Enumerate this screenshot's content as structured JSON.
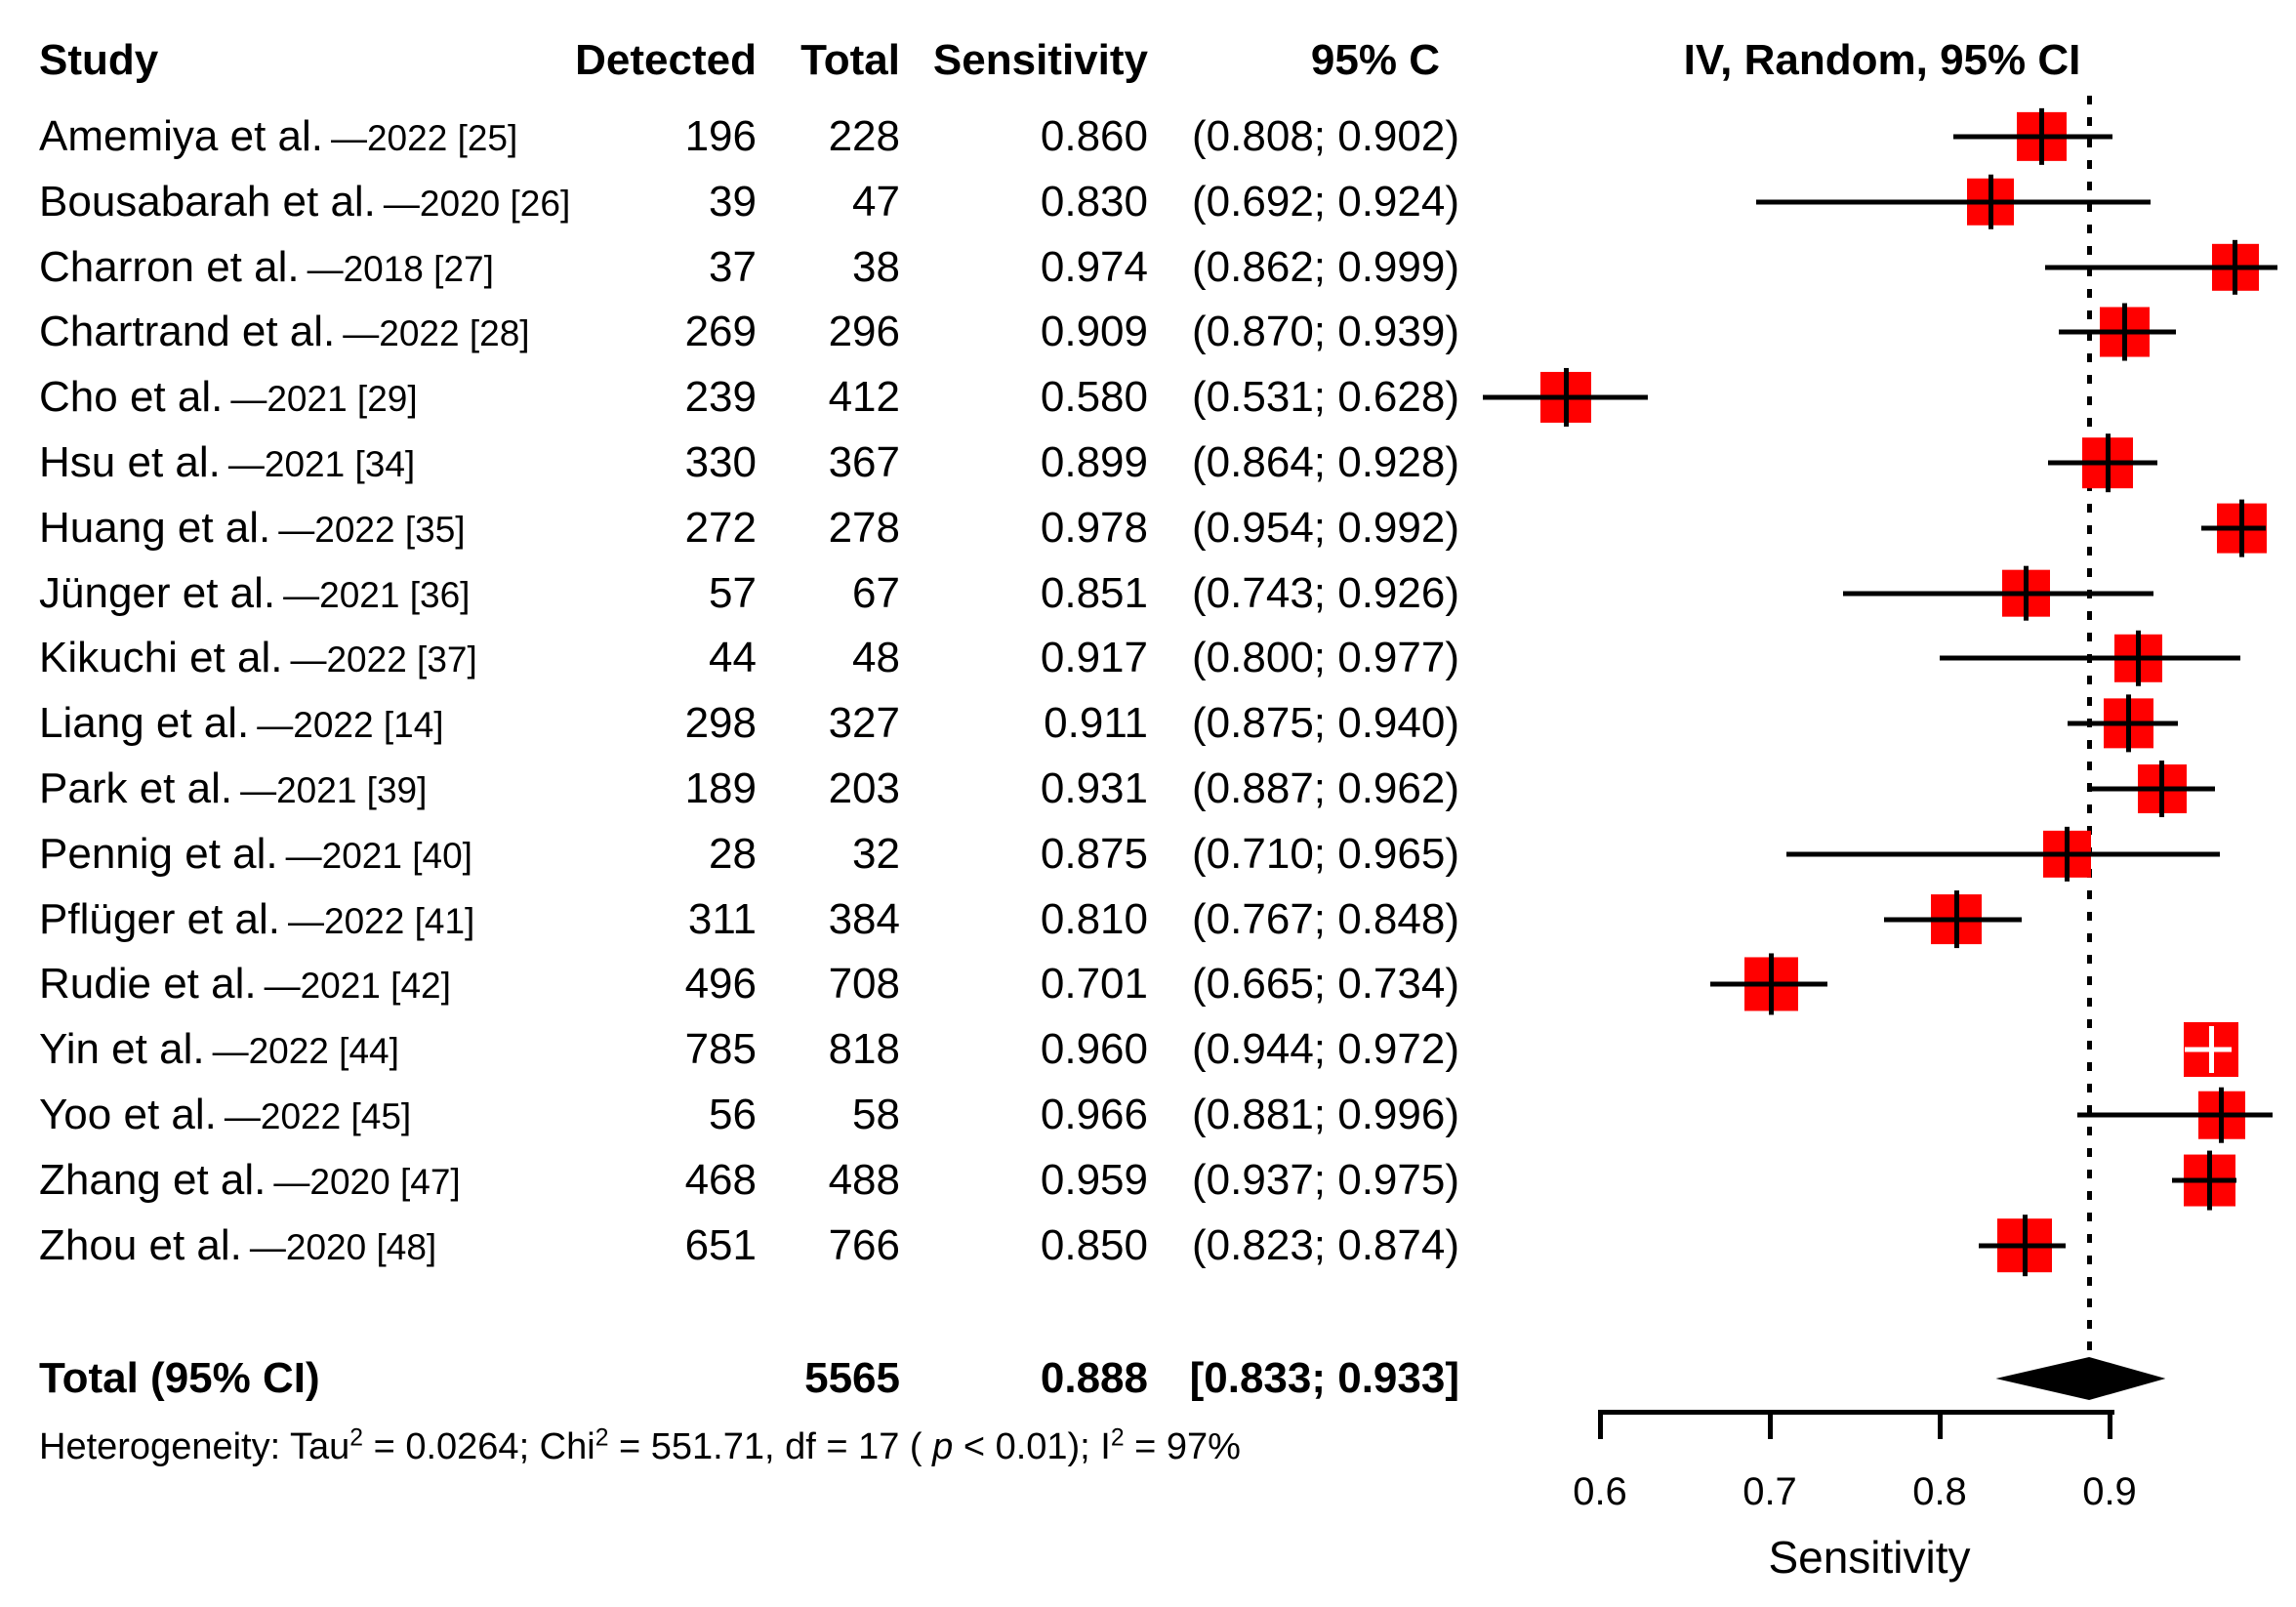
{
  "figure": {
    "columns": {
      "study": "Study",
      "detected": "Detected",
      "total": "Total",
      "sensitivity": "Sensitivity",
      "ci": "95% C",
      "plot": "IV, Random, 95% CI"
    },
    "total_row": {
      "label": "Total (95% CI)",
      "total": "5565",
      "sensitivity": "0.888",
      "ci": "[0.833; 0.933]"
    },
    "heterogeneity_segments": [
      {
        "t": "Heterogeneity: Tau"
      },
      {
        "t": "2",
        "sup": true
      },
      {
        "t": " = 0.0264; Chi"
      },
      {
        "t": "2",
        "sup": true
      },
      {
        "t": " = 551.71, df = 17 ( "
      },
      {
        "t": "p",
        "it": true
      },
      {
        "t": " < 0.01); I"
      },
      {
        "t": "2",
        "sup": true
      },
      {
        "t": " = 97%"
      }
    ],
    "axis": {
      "tick_labels": [
        "0.6",
        "0.7",
        "0.8",
        "0.9"
      ],
      "label": "Sensitivity"
    },
    "colors": {
      "marker": "#ff0000",
      "ink": "#000000",
      "diamond": "#000000"
    }
  },
  "chart_data": {
    "type": "scatter",
    "subtype": "forest-plot",
    "title": "",
    "xlabel": "Sensitivity",
    "x_ticks": [
      0.6,
      0.7,
      0.8,
      0.9
    ],
    "xlim": [
      0.5,
      1.005
    ],
    "grid": false,
    "reference_line": 0.888,
    "studies": [
      {
        "label": "Amemiya et al.",
        "year_ref": "—2022 [25]",
        "detected": "196",
        "total": "228",
        "sensitivity": 0.86,
        "ci_lower": 0.808,
        "ci_upper": 0.902,
        "sensitivity_text": "0.860",
        "ci_text": "(0.808; 0.902)"
      },
      {
        "label": "Bousabarah et al.",
        "year_ref": "—2020 [26]",
        "detected": "39",
        "total": "47",
        "sensitivity": 0.83,
        "ci_lower": 0.692,
        "ci_upper": 0.924,
        "sensitivity_text": "0.830",
        "ci_text": "(0.692; 0.924)"
      },
      {
        "label": "Charron et al.",
        "year_ref": "—2018 [27]",
        "detected": "37",
        "total": "38",
        "sensitivity": 0.974,
        "ci_lower": 0.862,
        "ci_upper": 0.999,
        "sensitivity_text": "0.974",
        "ci_text": "(0.862; 0.999)"
      },
      {
        "label": "Chartrand et al.",
        "year_ref": "—2022 [28]",
        "detected": "269",
        "total": "296",
        "sensitivity": 0.909,
        "ci_lower": 0.87,
        "ci_upper": 0.939,
        "sensitivity_text": "0.909",
        "ci_text": "(0.870; 0.939)"
      },
      {
        "label": "Cho et al.",
        "year_ref": "—2021 [29]",
        "detected": "239",
        "total": "412",
        "sensitivity": 0.58,
        "ci_lower": 0.531,
        "ci_upper": 0.628,
        "sensitivity_text": "0.580",
        "ci_text": "(0.531; 0.628)"
      },
      {
        "label": "Hsu et al.",
        "year_ref": "—2021 [34]",
        "detected": "330",
        "total": "367",
        "sensitivity": 0.899,
        "ci_lower": 0.864,
        "ci_upper": 0.928,
        "sensitivity_text": "0.899",
        "ci_text": "(0.864; 0.928)"
      },
      {
        "label": "Huang et al.",
        "year_ref": "—2022 [35]",
        "detected": "272",
        "total": "278",
        "sensitivity": 0.978,
        "ci_lower": 0.954,
        "ci_upper": 0.992,
        "sensitivity_text": "0.978",
        "ci_text": "(0.954; 0.992)"
      },
      {
        "label": "Jünger et al.",
        "year_ref": "—2021 [36]",
        "detected": "57",
        "total": "67",
        "sensitivity": 0.851,
        "ci_lower": 0.743,
        "ci_upper": 0.926,
        "sensitivity_text": "0.851",
        "ci_text": "(0.743; 0.926)"
      },
      {
        "label": "Kikuchi et al.",
        "year_ref": "—2022 [37]",
        "detected": "44",
        "total": "48",
        "sensitivity": 0.917,
        "ci_lower": 0.8,
        "ci_upper": 0.977,
        "sensitivity_text": "0.917",
        "ci_text": "(0.800; 0.977)"
      },
      {
        "label": "Liang et al.",
        "year_ref": "—2022 [14]",
        "detected": "298",
        "total": "327",
        "sensitivity": 0.911,
        "ci_lower": 0.875,
        "ci_upper": 0.94,
        "sensitivity_text": "0.911",
        "ci_text": "(0.875; 0.940)"
      },
      {
        "label": "Park et al.",
        "year_ref": "—2021 [39]",
        "detected": "189",
        "total": "203",
        "sensitivity": 0.931,
        "ci_lower": 0.887,
        "ci_upper": 0.962,
        "sensitivity_text": "0.931",
        "ci_text": "(0.887; 0.962)"
      },
      {
        "label": "Pennig et al.",
        "year_ref": "—2021 [40]",
        "detected": "28",
        "total": "32",
        "sensitivity": 0.875,
        "ci_lower": 0.71,
        "ci_upper": 0.965,
        "sensitivity_text": "0.875",
        "ci_text": "(0.710; 0.965)"
      },
      {
        "label": "Pflüger et al.",
        "year_ref": "—2022 [41]",
        "detected": "311",
        "total": "384",
        "sensitivity": 0.81,
        "ci_lower": 0.767,
        "ci_upper": 0.848,
        "sensitivity_text": "0.810",
        "ci_text": "(0.767; 0.848)"
      },
      {
        "label": "Rudie et al.",
        "year_ref": "—2021 [42]",
        "detected": "496",
        "total": "708",
        "sensitivity": 0.701,
        "ci_lower": 0.665,
        "ci_upper": 0.734,
        "sensitivity_text": "0.701",
        "ci_text": "(0.665; 0.734)"
      },
      {
        "label": "Yin et al.",
        "year_ref": "—2022 [44]",
        "detected": "785",
        "total": "818",
        "sensitivity": 0.96,
        "ci_lower": 0.944,
        "ci_upper": 0.972,
        "sensitivity_text": "0.960",
        "ci_text": "(0.944; 0.972)"
      },
      {
        "label": "Yoo et al.",
        "year_ref": "—2022 [45]",
        "detected": "56",
        "total": "58",
        "sensitivity": 0.966,
        "ci_lower": 0.881,
        "ci_upper": 0.996,
        "sensitivity_text": "0.966",
        "ci_text": "(0.881; 0.996)"
      },
      {
        "label": "Zhang et al.",
        "year_ref": "—2020 [47]",
        "detected": "468",
        "total": "488",
        "sensitivity": 0.959,
        "ci_lower": 0.937,
        "ci_upper": 0.975,
        "sensitivity_text": "0.959",
        "ci_text": "(0.937; 0.975)"
      },
      {
        "label": "Zhou et al.",
        "year_ref": "—2020 [48]",
        "detected": "651",
        "total": "766",
        "sensitivity": 0.85,
        "ci_lower": 0.823,
        "ci_upper": 0.874,
        "sensitivity_text": "0.850",
        "ci_text": "(0.823; 0.874)"
      }
    ],
    "overall": {
      "label": "Total (95% CI)",
      "total": 5565,
      "estimate": 0.888,
      "ci_lower": 0.833,
      "ci_upper": 0.933,
      "estimate_text": "0.888",
      "ci_text": "[0.833; 0.933]"
    },
    "heterogeneity_text": "Heterogeneity: Tau2 = 0.0264; Chi2 = 551.71, df = 17 ( p < 0.01); I2 = 97%",
    "legend": null
  }
}
